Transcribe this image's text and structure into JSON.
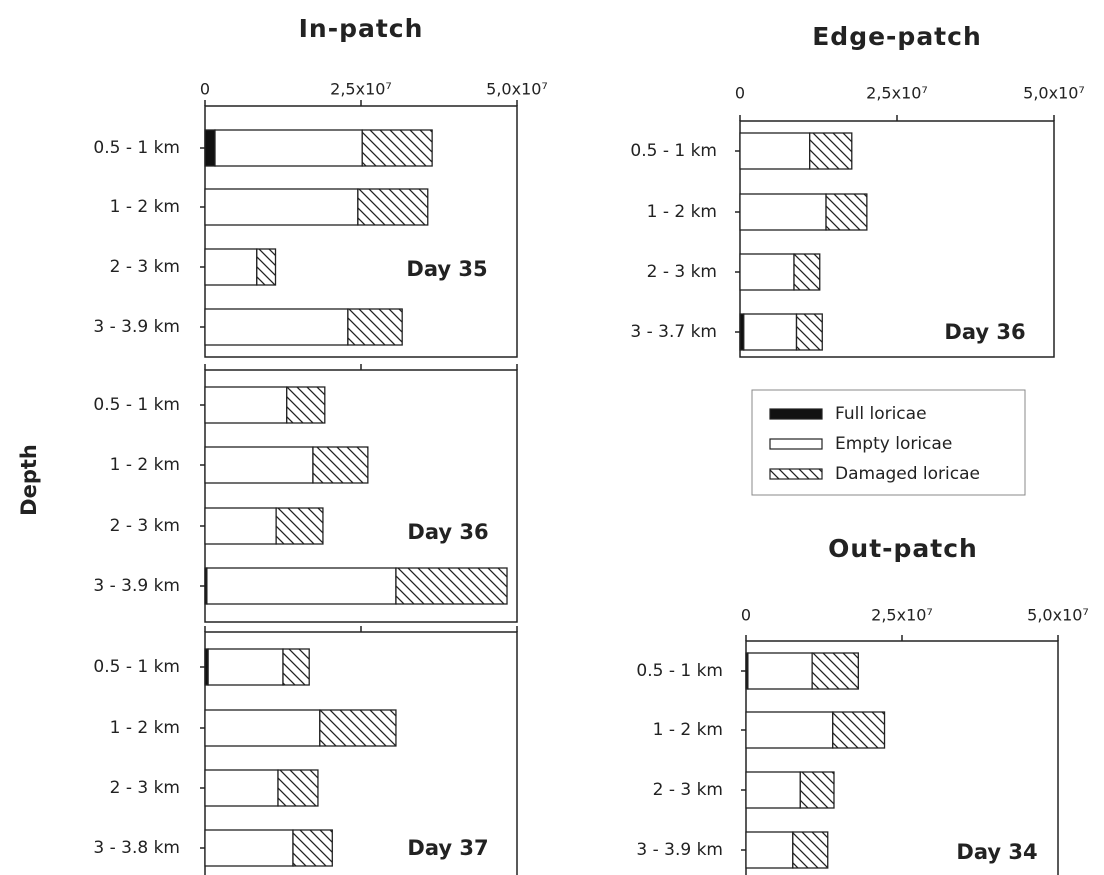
{
  "chart_data": [
    {
      "type": "bar",
      "orientation": "horizontal",
      "stacked": true,
      "title": "In-patch",
      "ylabel": "Depth",
      "annotation": "Day 35",
      "categories": [
        "0.5 - 1 km",
        "1 - 2 km",
        "2 - 3 km",
        "3 - 3.9 km"
      ],
      "series": [
        {
          "color": "#111111",
          "values": [
            1600000,
            0,
            0,
            0
          ]
        },
        {
          "color": "#ffffff",
          "values": [
            23600000,
            24500000,
            8300000,
            22900000
          ]
        },
        {
          "color": "#ffffff",
          "pattern": "hatch",
          "values": [
            11200000,
            11200000,
            3000000,
            8700000
          ]
        }
      ],
      "xlim": [
        0,
        50000000
      ],
      "xticks": [
        0,
        {
          "value": 25000000,
          "label": "2,5x10⁷"
        },
        {
          "value": 50000000,
          "label": "5,0x10⁷"
        }
      ],
      "xtick_labels": true
    },
    {
      "type": "bar",
      "orientation": "horizontal",
      "stacked": true,
      "annotation": "Day 36",
      "categories": [
        "0.5 - 1 km",
        "1 - 2 km",
        "2 - 3 km",
        "3 - 3.9 km"
      ],
      "series": [
        {
          "color": "#111111",
          "values": [
            0,
            0,
            0,
            300000
          ]
        },
        {
          "color": "#ffffff",
          "values": [
            13100000,
            17300000,
            11400000,
            30300000
          ]
        },
        {
          "color": "#ffffff",
          "pattern": "hatch",
          "values": [
            6100000,
            8800000,
            7500000,
            17800000
          ]
        }
      ],
      "xlim": [
        0,
        50000000
      ],
      "xticks": [
        0,
        25000000,
        50000000
      ],
      "xtick_labels": false
    },
    {
      "type": "bar",
      "orientation": "horizontal",
      "stacked": true,
      "annotation": "Day 37",
      "categories": [
        "0.5 - 1 km",
        "1 - 2 km",
        "2 - 3 km",
        "3 - 3.8 km"
      ],
      "series": [
        {
          "color": "#111111",
          "values": [
            500000,
            0,
            0,
            0
          ]
        },
        {
          "color": "#ffffff",
          "values": [
            12000000,
            18400000,
            11700000,
            14100000
          ]
        },
        {
          "color": "#ffffff",
          "pattern": "hatch",
          "values": [
            4200000,
            12200000,
            6400000,
            6300000
          ]
        }
      ],
      "xlim": [
        0,
        50000000
      ],
      "xticks": [
        0,
        25000000,
        50000000
      ],
      "xtick_labels": false
    },
    {
      "type": "bar",
      "orientation": "horizontal",
      "stacked": true,
      "title": "Edge-patch",
      "annotation": "Day 36",
      "categories": [
        "0.5 - 1 km",
        "1 - 2 km",
        "2 - 3 km",
        "3 - 3.7 km"
      ],
      "series": [
        {
          "name": "Full loricae",
          "color": "#111111",
          "values": [
            0,
            0,
            0,
            600000
          ]
        },
        {
          "name": "Empty loricae",
          "color": "#ffffff",
          "values": [
            11100000,
            13700000,
            8600000,
            8400000
          ]
        },
        {
          "name": "Damaged loricae",
          "color": "#ffffff",
          "pattern": "hatch",
          "values": [
            6700000,
            6500000,
            4100000,
            4100000
          ]
        }
      ],
      "xlim": [
        0,
        50000000
      ],
      "xticks": [
        0,
        {
          "value": 25000000,
          "label": "2,5x10⁷"
        },
        {
          "value": 50000000,
          "label": "5,0x10⁷"
        }
      ],
      "xtick_labels": true,
      "legend": true
    },
    {
      "type": "bar",
      "orientation": "horizontal",
      "stacked": true,
      "title": "Out-patch",
      "annotation": "Day 34",
      "categories": [
        "0.5 - 1 km",
        "1 - 2 km",
        "2 - 3 km",
        "3 - 3.9 km"
      ],
      "series": [
        {
          "color": "#111111",
          "values": [
            300000,
            0,
            0,
            0
          ]
        },
        {
          "color": "#ffffff",
          "values": [
            10300000,
            13900000,
            8700000,
            7500000
          ]
        },
        {
          "color": "#ffffff",
          "pattern": "hatch",
          "values": [
            7400000,
            8300000,
            5400000,
            5600000
          ]
        }
      ],
      "xlim": [
        0,
        50000000
      ],
      "xticks": [
        0,
        {
          "value": 25000000,
          "label": "2,5x10⁷"
        },
        {
          "value": 50000000,
          "label": "5,0x10⁷"
        }
      ],
      "xtick_labels": true
    }
  ]
}
